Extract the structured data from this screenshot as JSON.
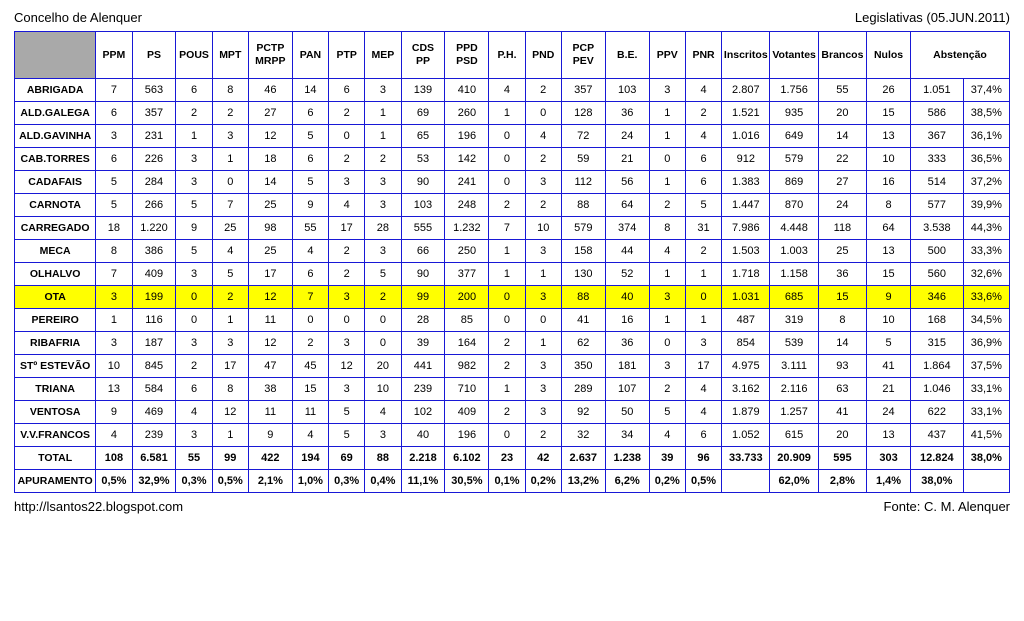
{
  "header": {
    "left": "Concelho de Alenquer",
    "right": "Legislativas (05.JUN.2011)"
  },
  "footer": {
    "left": "http://lsantos22.blogspot.com",
    "right": "Fonte: C. M. Alenquer"
  },
  "style": {
    "border_color": "#1818d6",
    "highlight_bg": "#ffff00",
    "corner_bg": "#a9a9a9",
    "bg": "#ffffff",
    "text": "#000000",
    "font": "Arial",
    "header_fontsize": 10.5,
    "cell_fontsize": 11
  },
  "columns": [
    "",
    "PPM",
    "PS",
    "POUS",
    "MPT",
    "PCTP MRPP",
    "PAN",
    "PTP",
    "MEP",
    "CDS PP",
    "PPD PSD",
    "P.H.",
    "PND",
    "PCP PEV",
    "B.E.",
    "PPV",
    "PNR",
    "Inscritos",
    "Votantes",
    "Brancos",
    "Nulos",
    "Abstenção",
    ""
  ],
  "highlight_row_index": 9,
  "rows": [
    {
      "label": "ABRIGADA",
      "v": [
        "7",
        "563",
        "6",
        "8",
        "46",
        "14",
        "6",
        "3",
        "139",
        "410",
        "4",
        "2",
        "357",
        "103",
        "3",
        "4",
        "2.807",
        "1.756",
        "55",
        "26",
        "1.051",
        "37,4%"
      ]
    },
    {
      "label": "ALD.GALEGA",
      "v": [
        "6",
        "357",
        "2",
        "2",
        "27",
        "6",
        "2",
        "1",
        "69",
        "260",
        "1",
        "0",
        "128",
        "36",
        "1",
        "2",
        "1.521",
        "935",
        "20",
        "15",
        "586",
        "38,5%"
      ]
    },
    {
      "label": "ALD.GAVINHA",
      "v": [
        "3",
        "231",
        "1",
        "3",
        "12",
        "5",
        "0",
        "1",
        "65",
        "196",
        "0",
        "4",
        "72",
        "24",
        "1",
        "4",
        "1.016",
        "649",
        "14",
        "13",
        "367",
        "36,1%"
      ]
    },
    {
      "label": "CAB.TORRES",
      "v": [
        "6",
        "226",
        "3",
        "1",
        "18",
        "6",
        "2",
        "2",
        "53",
        "142",
        "0",
        "2",
        "59",
        "21",
        "0",
        "6",
        "912",
        "579",
        "22",
        "10",
        "333",
        "36,5%"
      ]
    },
    {
      "label": "CADAFAIS",
      "v": [
        "5",
        "284",
        "3",
        "0",
        "14",
        "5",
        "3",
        "3",
        "90",
        "241",
        "0",
        "3",
        "112",
        "56",
        "1",
        "6",
        "1.383",
        "869",
        "27",
        "16",
        "514",
        "37,2%"
      ]
    },
    {
      "label": "CARNOTA",
      "v": [
        "5",
        "266",
        "5",
        "7",
        "25",
        "9",
        "4",
        "3",
        "103",
        "248",
        "2",
        "2",
        "88",
        "64",
        "2",
        "5",
        "1.447",
        "870",
        "24",
        "8",
        "577",
        "39,9%"
      ]
    },
    {
      "label": "CARREGADO",
      "v": [
        "18",
        "1.220",
        "9",
        "25",
        "98",
        "55",
        "17",
        "28",
        "555",
        "1.232",
        "7",
        "10",
        "579",
        "374",
        "8",
        "31",
        "7.986",
        "4.448",
        "118",
        "64",
        "3.538",
        "44,3%"
      ]
    },
    {
      "label": "MECA",
      "v": [
        "8",
        "386",
        "5",
        "4",
        "25",
        "4",
        "2",
        "3",
        "66",
        "250",
        "1",
        "3",
        "158",
        "44",
        "4",
        "2",
        "1.503",
        "1.003",
        "25",
        "13",
        "500",
        "33,3%"
      ]
    },
    {
      "label": "OLHALVO",
      "v": [
        "7",
        "409",
        "3",
        "5",
        "17",
        "6",
        "2",
        "5",
        "90",
        "377",
        "1",
        "1",
        "130",
        "52",
        "1",
        "1",
        "1.718",
        "1.158",
        "36",
        "15",
        "560",
        "32,6%"
      ]
    },
    {
      "label": "OTA",
      "v": [
        "3",
        "199",
        "0",
        "2",
        "12",
        "7",
        "3",
        "2",
        "99",
        "200",
        "0",
        "3",
        "88",
        "40",
        "3",
        "0",
        "1.031",
        "685",
        "15",
        "9",
        "346",
        "33,6%"
      ]
    },
    {
      "label": "PEREIRO",
      "v": [
        "1",
        "116",
        "0",
        "1",
        "11",
        "0",
        "0",
        "0",
        "28",
        "85",
        "0",
        "0",
        "41",
        "16",
        "1",
        "1",
        "487",
        "319",
        "8",
        "10",
        "168",
        "34,5%"
      ]
    },
    {
      "label": "RIBAFRIA",
      "v": [
        "3",
        "187",
        "3",
        "3",
        "12",
        "2",
        "3",
        "0",
        "39",
        "164",
        "2",
        "1",
        "62",
        "36",
        "0",
        "3",
        "854",
        "539",
        "14",
        "5",
        "315",
        "36,9%"
      ]
    },
    {
      "label": "STº ESTEVÃO",
      "v": [
        "10",
        "845",
        "2",
        "17",
        "47",
        "45",
        "12",
        "20",
        "441",
        "982",
        "2",
        "3",
        "350",
        "181",
        "3",
        "17",
        "4.975",
        "3.111",
        "93",
        "41",
        "1.864",
        "37,5%"
      ]
    },
    {
      "label": "TRIANA",
      "v": [
        "13",
        "584",
        "6",
        "8",
        "38",
        "15",
        "3",
        "10",
        "239",
        "710",
        "1",
        "3",
        "289",
        "107",
        "2",
        "4",
        "3.162",
        "2.116",
        "63",
        "21",
        "1.046",
        "33,1%"
      ]
    },
    {
      "label": "VENTOSA",
      "v": [
        "9",
        "469",
        "4",
        "12",
        "11",
        "11",
        "5",
        "4",
        "102",
        "409",
        "2",
        "3",
        "92",
        "50",
        "5",
        "4",
        "1.879",
        "1.257",
        "41",
        "24",
        "622",
        "33,1%"
      ]
    },
    {
      "label": "V.V.FRANCOS",
      "v": [
        "4",
        "239",
        "3",
        "1",
        "9",
        "4",
        "5",
        "3",
        "40",
        "196",
        "0",
        "2",
        "32",
        "34",
        "4",
        "6",
        "1.052",
        "615",
        "20",
        "13",
        "437",
        "41,5%"
      ]
    }
  ],
  "total": {
    "label": "TOTAL",
    "v": [
      "108",
      "6.581",
      "55",
      "99",
      "422",
      "194",
      "69",
      "88",
      "2.218",
      "6.102",
      "23",
      "42",
      "2.637",
      "1.238",
      "39",
      "96",
      "33.733",
      "20.909",
      "595",
      "303",
      "12.824",
      "38,0%"
    ]
  },
  "apur": {
    "label": "APURAMENTO",
    "v": [
      "0,5%",
      "32,9%",
      "0,3%",
      "0,5%",
      "2,1%",
      "1,0%",
      "0,3%",
      "0,4%",
      "11,1%",
      "30,5%",
      "0,1%",
      "0,2%",
      "13,2%",
      "6,2%",
      "0,2%",
      "0,5%",
      "",
      "62,0%",
      "2,8%",
      "1,4%",
      "38,0%",
      ""
    ]
  }
}
